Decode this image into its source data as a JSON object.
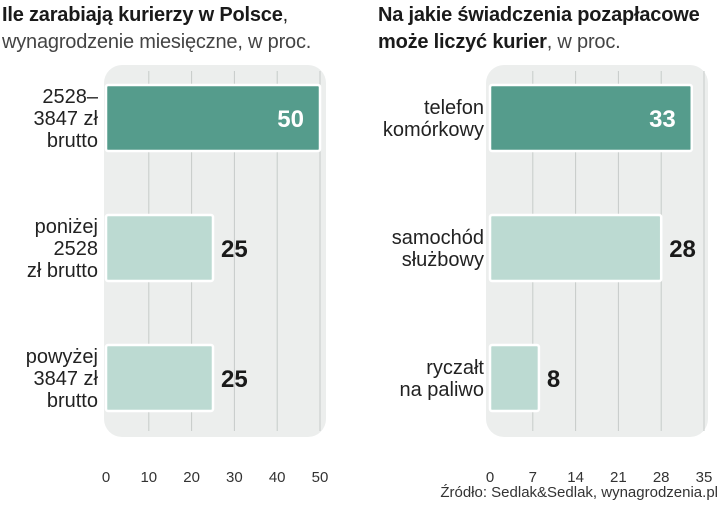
{
  "chart_data": [
    {
      "type": "bar",
      "orientation": "horizontal",
      "title_bold": "Ile zarabiają kurierzy w Polsce",
      "title_sep": ",",
      "subtitle": "wynagrodzenie miesięczne, w proc.",
      "categories": [
        [
          "2528–",
          "3847 zł",
          "brutto"
        ],
        [
          "poniżej",
          "2528",
          "zł brutto"
        ],
        [
          "powyżej",
          "3847 zł",
          "brutto"
        ]
      ],
      "values": [
        50,
        25,
        25
      ],
      "value_labels": [
        "50",
        "25",
        "25"
      ],
      "highlight_index": 0,
      "xlim": [
        0,
        50
      ],
      "xticks": [
        "0",
        "10",
        "20",
        "30",
        "40",
        "50"
      ],
      "xtick_values": [
        0,
        10,
        20,
        30,
        40,
        50
      ]
    },
    {
      "type": "bar",
      "orientation": "horizontal",
      "title_bold_line1": "Na jakie świadczenia pozapłacowe",
      "title_bold_line2": "może liczyć kurier",
      "subtitle": ", w proc.",
      "categories": [
        [
          "telefon",
          "komórkowy"
        ],
        [
          "samochód",
          "służbowy"
        ],
        [
          "ryczałt",
          "na paliwo"
        ]
      ],
      "values": [
        33,
        28,
        8
      ],
      "value_labels": [
        "33",
        "28",
        "8"
      ],
      "highlight_index": 0,
      "xlim": [
        0,
        35
      ],
      "xticks": [
        "0",
        "7",
        "14",
        "21",
        "28",
        "35"
      ],
      "xtick_values": [
        0,
        7,
        14,
        21,
        28,
        35
      ]
    }
  ],
  "source": "Źródło: Sedlak&Sedlak, wynagrodzenia.pl",
  "colors": {
    "highlight": "#559c8c",
    "normal": "#bcdad2",
    "panel": "#eceeed",
    "grid": "#c6cbc9",
    "highlight_text": "#ffffff",
    "value_text": "#1a1a1a"
  }
}
